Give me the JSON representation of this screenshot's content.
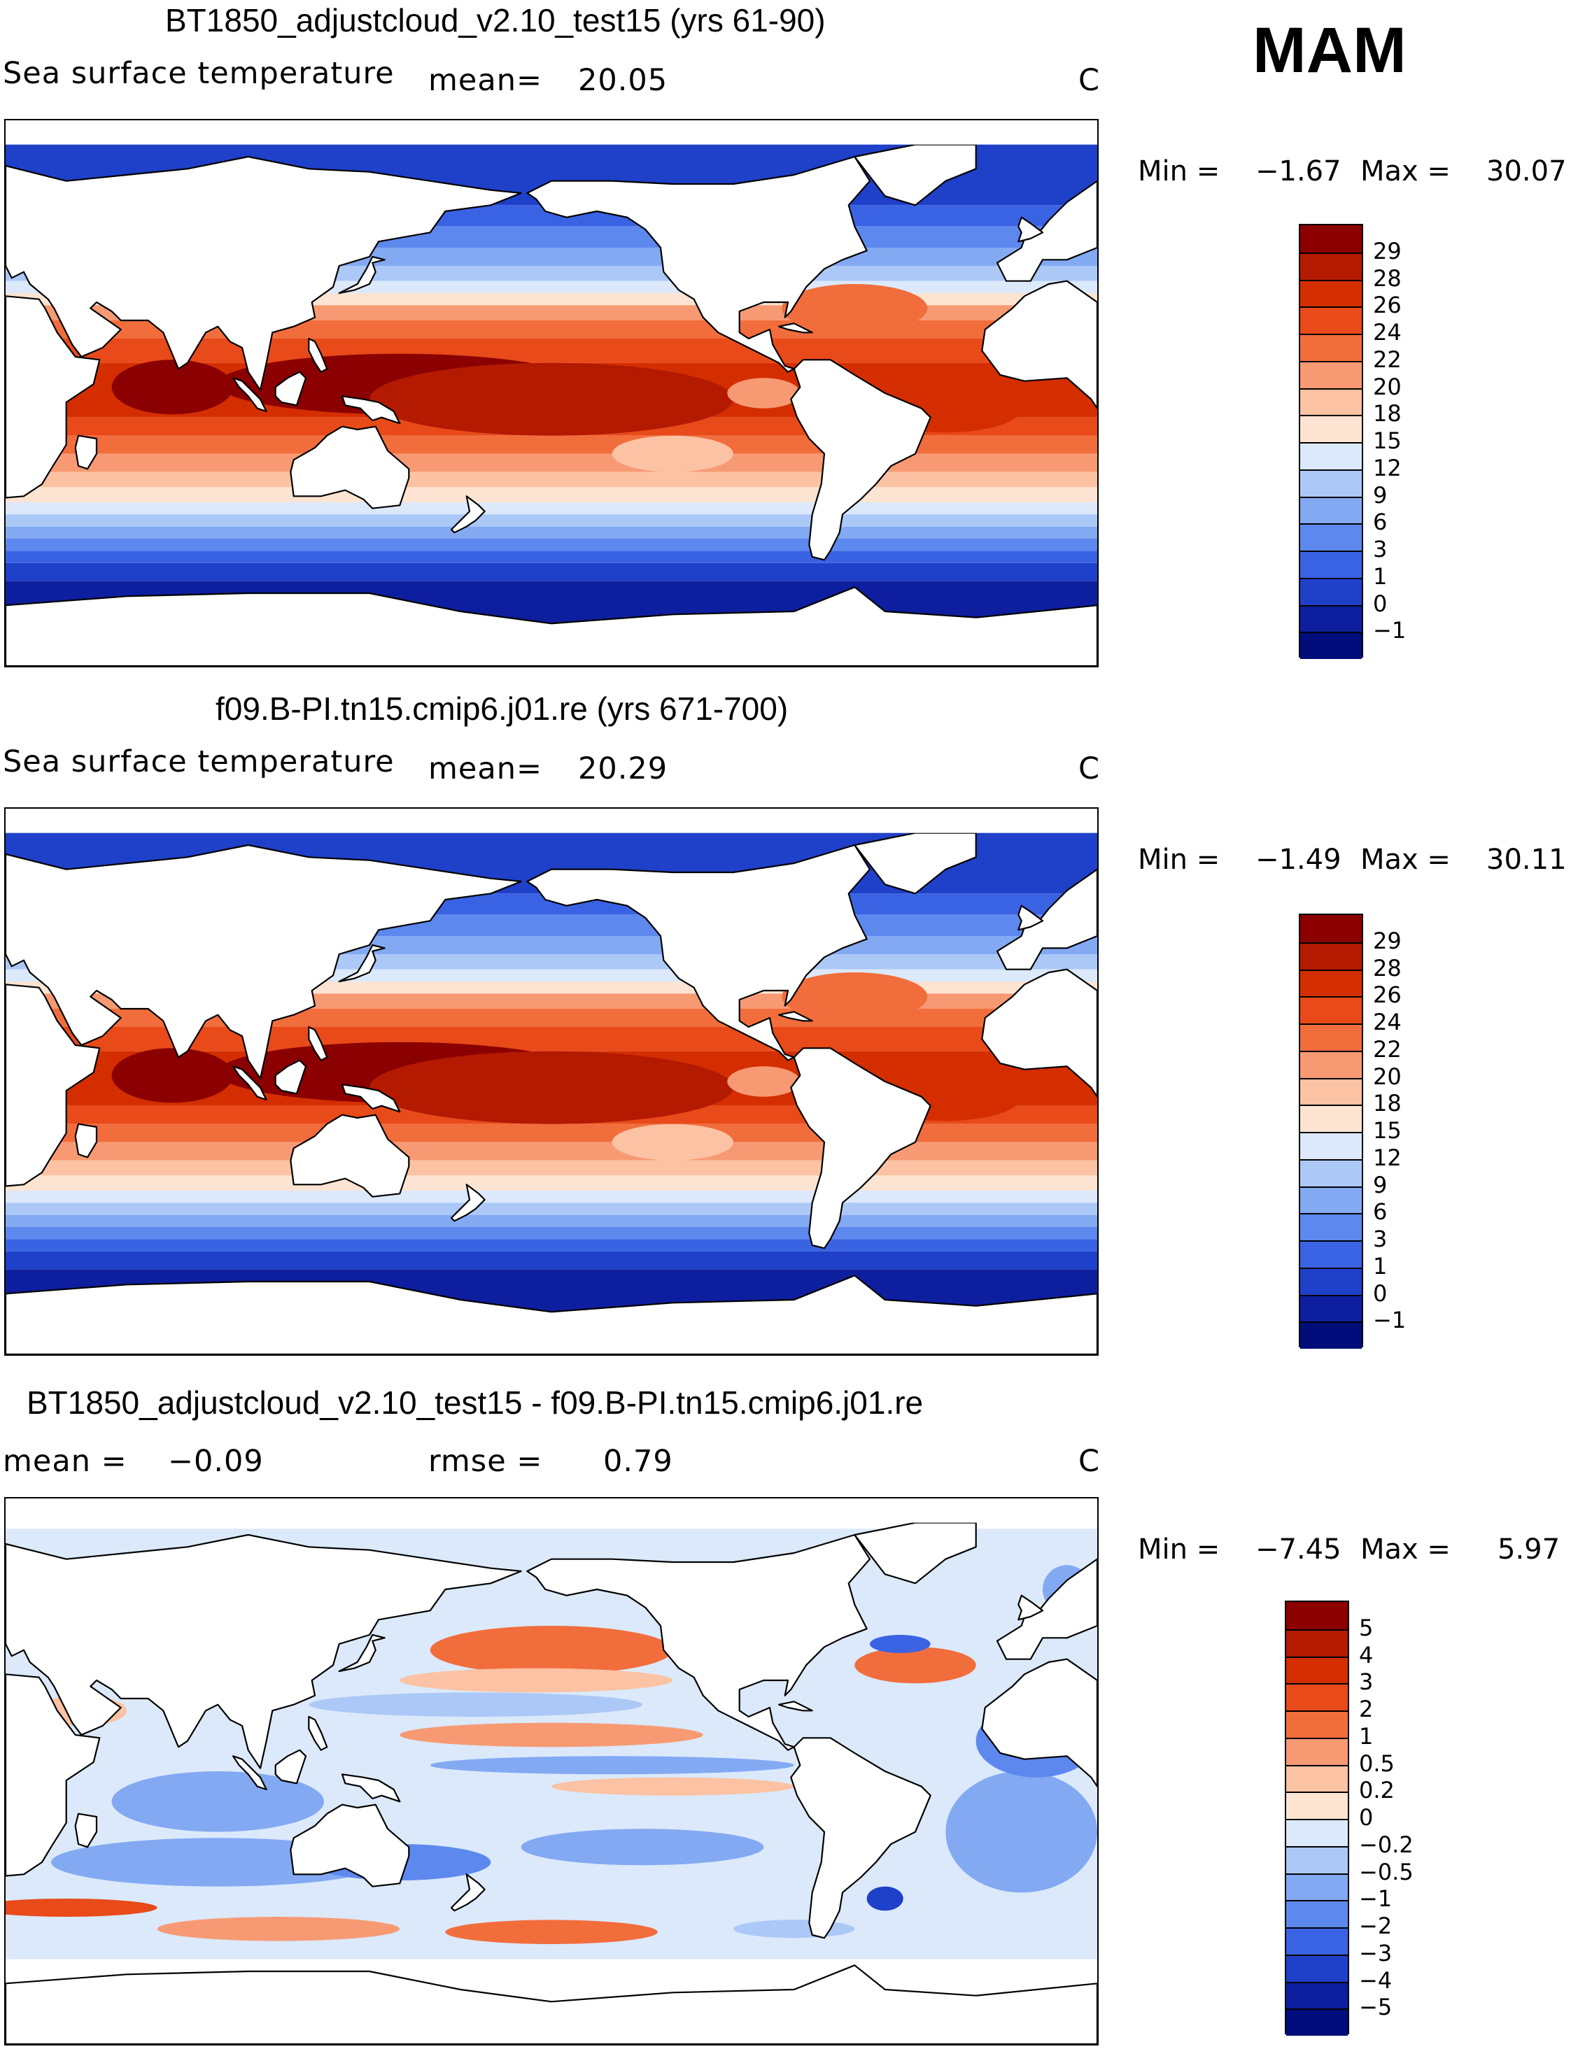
{
  "season": "MAM",
  "units_label": "C",
  "panels": [
    {
      "id": "p1",
      "title": "BT1850_adjustcloud_v2.10_test15 (yrs 61-90)",
      "variable": "Sea surface temperature",
      "stat1_label": "mean=",
      "stat1_value": "20.05",
      "units": "C",
      "min_label": "Min =",
      "min_value": "−1.67",
      "max_label": "Max =",
      "max_value": "30.07",
      "palette": "abs",
      "colorbar": {
        "levels": [
          "29",
          "28",
          "26",
          "24",
          "22",
          "20",
          "18",
          "15",
          "12",
          "9",
          "6",
          "3",
          "1",
          "0",
          "−1"
        ],
        "colors": [
          "#8b0000",
          "#b31a00",
          "#d42e00",
          "#e84a1a",
          "#f26d3c",
          "#f79a73",
          "#fbc2a3",
          "#fde4d2",
          "#dbe9fb",
          "#abc8f7",
          "#83a9f3",
          "#5d88ee",
          "#3a63e3",
          "#1f40c8",
          "#0d1f9e",
          "#000d7a"
        ]
      }
    },
    {
      "id": "p2",
      "title": "f09.B-PI.tn15.cmip6.j01.re (yrs 671-700)",
      "variable": "Sea surface temperature",
      "stat1_label": "mean=",
      "stat1_value": "20.29",
      "units": "C",
      "min_label": "Min =",
      "min_value": "−1.49",
      "max_label": "Max =",
      "max_value": "30.11",
      "palette": "abs",
      "colorbar": {
        "levels": [
          "29",
          "28",
          "26",
          "24",
          "22",
          "20",
          "18",
          "15",
          "12",
          "9",
          "6",
          "3",
          "1",
          "0",
          "−1"
        ],
        "colors": [
          "#8b0000",
          "#b31a00",
          "#d42e00",
          "#e84a1a",
          "#f26d3c",
          "#f79a73",
          "#fbc2a3",
          "#fde4d2",
          "#dbe9fb",
          "#abc8f7",
          "#83a9f3",
          "#5d88ee",
          "#3a63e3",
          "#1f40c8",
          "#0d1f9e",
          "#000d7a"
        ]
      }
    },
    {
      "id": "p3",
      "title": "BT1850_adjustcloud_v2.10_test15 - f09.B-PI.tn15.cmip6.j01.re",
      "stat1_label": "mean =",
      "stat1_value": "−0.09",
      "stat2_label": "rmse =",
      "stat2_value": "0.79",
      "units": "C",
      "min_label": "Min =",
      "min_value": "−7.45",
      "max_label": "Max =",
      "max_value": "5.97",
      "palette": "diff",
      "colorbar": {
        "levels": [
          "5",
          "4",
          "3",
          "2",
          "1",
          "0.5",
          "0.2",
          "0",
          "−0.2",
          "−0.5",
          "−1",
          "−2",
          "−3",
          "−4",
          "−5"
        ],
        "colors": [
          "#8b0000",
          "#b31a00",
          "#d42e00",
          "#e84a1a",
          "#f26d3c",
          "#f79a73",
          "#fbc2a3",
          "#fde4d2",
          "#dbe9fb",
          "#abc8f7",
          "#83a9f3",
          "#5d88ee",
          "#3a63e3",
          "#1f40c8",
          "#0d1f9e",
          "#000d7a"
        ]
      }
    }
  ]
}
